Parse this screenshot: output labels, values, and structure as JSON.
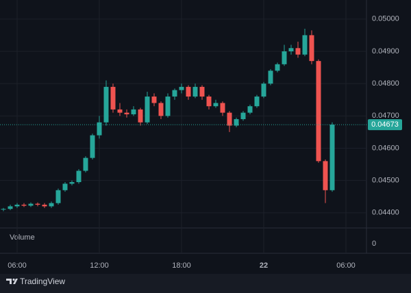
{
  "chart_data": {
    "type": "candlestick",
    "x": [
      5.0,
      5.5,
      6.0,
      6.5,
      7.0,
      7.5,
      8.0,
      8.5,
      9.0,
      9.5,
      10.0,
      10.5,
      11.0,
      11.5,
      12.0,
      12.5,
      13.0,
      13.5,
      14.0,
      14.5,
      15.0,
      15.5,
      16.0,
      16.5,
      17.0,
      17.5,
      18.0,
      18.5,
      19.0,
      19.5,
      20.0,
      20.5,
      21.0,
      21.5,
      22.0,
      22.5,
      23.0,
      23.5,
      24.0,
      24.5,
      25.0,
      25.5,
      26.0,
      26.5,
      27.0,
      27.5,
      28.0,
      28.5,
      29.0
    ],
    "open": [
      0.0441,
      0.04412,
      0.0442,
      0.04425,
      0.04422,
      0.04428,
      0.04425,
      0.0442,
      0.0443,
      0.0447,
      0.0449,
      0.04495,
      0.0453,
      0.0457,
      0.0464,
      0.0468,
      0.0479,
      0.0472,
      0.0471,
      0.04705,
      0.0472,
      0.0468,
      0.0476,
      0.0474,
      0.047,
      0.0476,
      0.0478,
      0.0479,
      0.0476,
      0.0479,
      0.0476,
      0.0473,
      0.0474,
      0.0471,
      0.0467,
      0.0469,
      0.0471,
      0.0473,
      0.0476,
      0.048,
      0.0484,
      0.0486,
      0.049,
      0.0491,
      0.0489,
      0.0495,
      0.0487,
      0.0456,
      0.0447
    ],
    "high": [
      0.04415,
      0.04425,
      0.0443,
      0.0443,
      0.04432,
      0.04432,
      0.0443,
      0.04435,
      0.04475,
      0.04495,
      0.045,
      0.04535,
      0.04575,
      0.04645,
      0.047,
      0.0481,
      0.048,
      0.0474,
      0.0472,
      0.0473,
      0.04725,
      0.04775,
      0.0477,
      0.04745,
      0.0477,
      0.04785,
      0.048,
      0.04795,
      0.048,
      0.04795,
      0.04765,
      0.0475,
      0.04745,
      0.04715,
      0.04695,
      0.04715,
      0.04735,
      0.04765,
      0.04805,
      0.04845,
      0.04865,
      0.0492,
      0.0492,
      0.0493,
      0.0497,
      0.04965,
      0.04875,
      0.04565,
      0.0468
    ],
    "low": [
      0.04405,
      0.04408,
      0.04415,
      0.04418,
      0.04418,
      0.0442,
      0.04415,
      0.04415,
      0.04425,
      0.04465,
      0.04485,
      0.0449,
      0.04525,
      0.04565,
      0.0463,
      0.0467,
      0.0471,
      0.047,
      0.04695,
      0.047,
      0.0467,
      0.04675,
      0.0473,
      0.0469,
      0.04695,
      0.0475,
      0.0477,
      0.0475,
      0.04755,
      0.0475,
      0.0472,
      0.04725,
      0.047,
      0.0465,
      0.04665,
      0.04685,
      0.04705,
      0.04725,
      0.04755,
      0.04795,
      0.04835,
      0.04855,
      0.0489,
      0.0488,
      0.04885,
      0.0486,
      0.04555,
      0.0443,
      0.04465
    ],
    "close": [
      0.04412,
      0.0442,
      0.04425,
      0.04422,
      0.04428,
      0.04425,
      0.0442,
      0.0443,
      0.0447,
      0.0449,
      0.04495,
      0.0453,
      0.0457,
      0.0464,
      0.0468,
      0.0479,
      0.0472,
      0.0471,
      0.04705,
      0.0472,
      0.0468,
      0.0476,
      0.0474,
      0.047,
      0.0476,
      0.0478,
      0.0479,
      0.0476,
      0.0479,
      0.0476,
      0.0473,
      0.0474,
      0.0471,
      0.0467,
      0.0469,
      0.0471,
      0.0473,
      0.0476,
      0.048,
      0.0484,
      0.0486,
      0.049,
      0.0491,
      0.0489,
      0.0495,
      0.0487,
      0.0456,
      0.0447,
      0.04673
    ],
    "up_color": "#26a69a",
    "down_color": "#ef5350",
    "xlim": [
      4.75,
      31.5
    ],
    "xticks": [
      {
        "value": 6,
        "label": "06:00"
      },
      {
        "value": 12,
        "label": "12:00"
      },
      {
        "value": 18,
        "label": "18:00"
      },
      {
        "value": 24,
        "label": "22"
      },
      {
        "value": 30,
        "label": "06:00"
      }
    ],
    "ylim": [
      0.04353,
      0.05059
    ],
    "yticks": [
      {
        "value": 0.044,
        "label": "0.04400"
      },
      {
        "value": 0.045,
        "label": "0.04500"
      },
      {
        "value": 0.046,
        "label": "0.04600"
      },
      {
        "value": 0.047,
        "label": "0.04700"
      },
      {
        "value": 0.048,
        "label": "0.04800"
      },
      {
        "value": 0.049,
        "label": "0.04900"
      },
      {
        "value": 0.05,
        "label": "0.05000"
      }
    ],
    "grid": true,
    "volume_label": "Volume",
    "volume_yticks": [
      0
    ]
  },
  "footer": {
    "brand": "TradingView"
  }
}
